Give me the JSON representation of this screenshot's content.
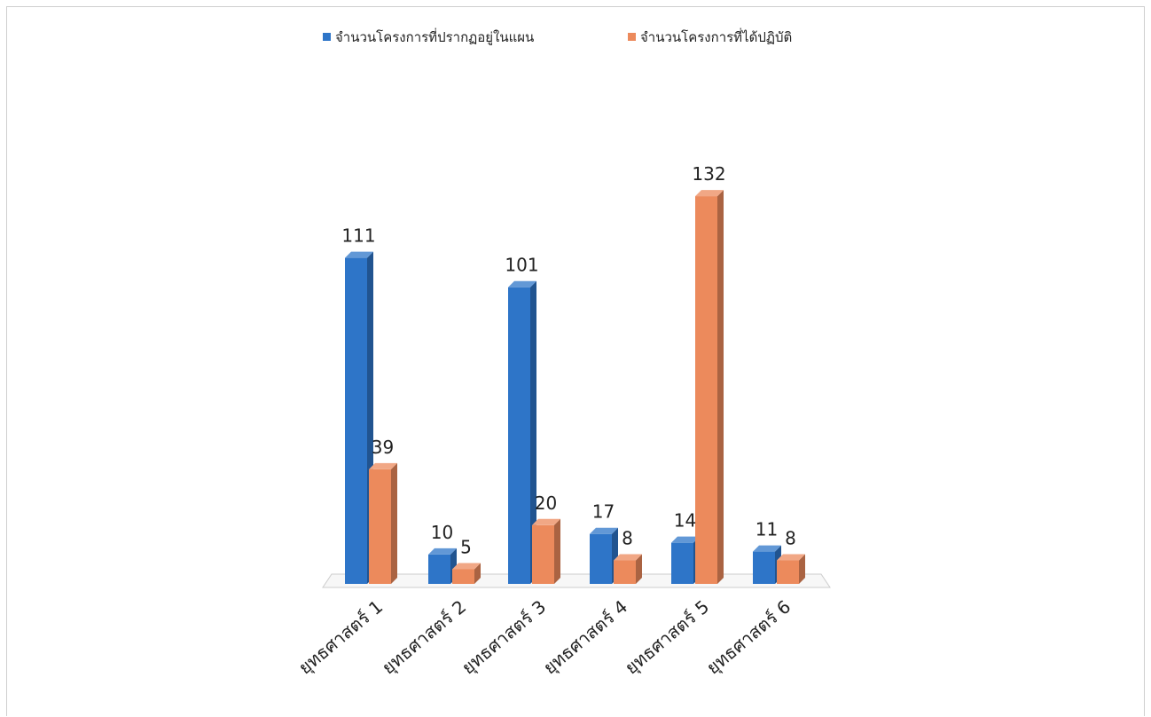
{
  "chart_data": {
    "type": "bar",
    "title": "",
    "xlabel": "",
    "ylabel": "",
    "ylim": [
      0,
      140
    ],
    "grid": false,
    "legend_position": "top",
    "categories": [
      "ยุทธศาสตร์ 1",
      "ยุทธศาสตร์ 2",
      "ยุทธศาสตร์ 3",
      "ยุทธศาสตร์ 4",
      "ยุทธศาสตร์ 5",
      "ยุทธศาสตร์ 6"
    ],
    "series": [
      {
        "name": "จำนวนโครงการที่ปรากฏอยู่ในแผน",
        "values": [
          111,
          10,
          101,
          17,
          14,
          11
        ],
        "color": "#2e75c8"
      },
      {
        "name": "จำนวนโครงการที่ได้ปฏิบัติ",
        "values": [
          39,
          5,
          20,
          8,
          132,
          8
        ],
        "color": "#ec8a5c"
      }
    ]
  }
}
